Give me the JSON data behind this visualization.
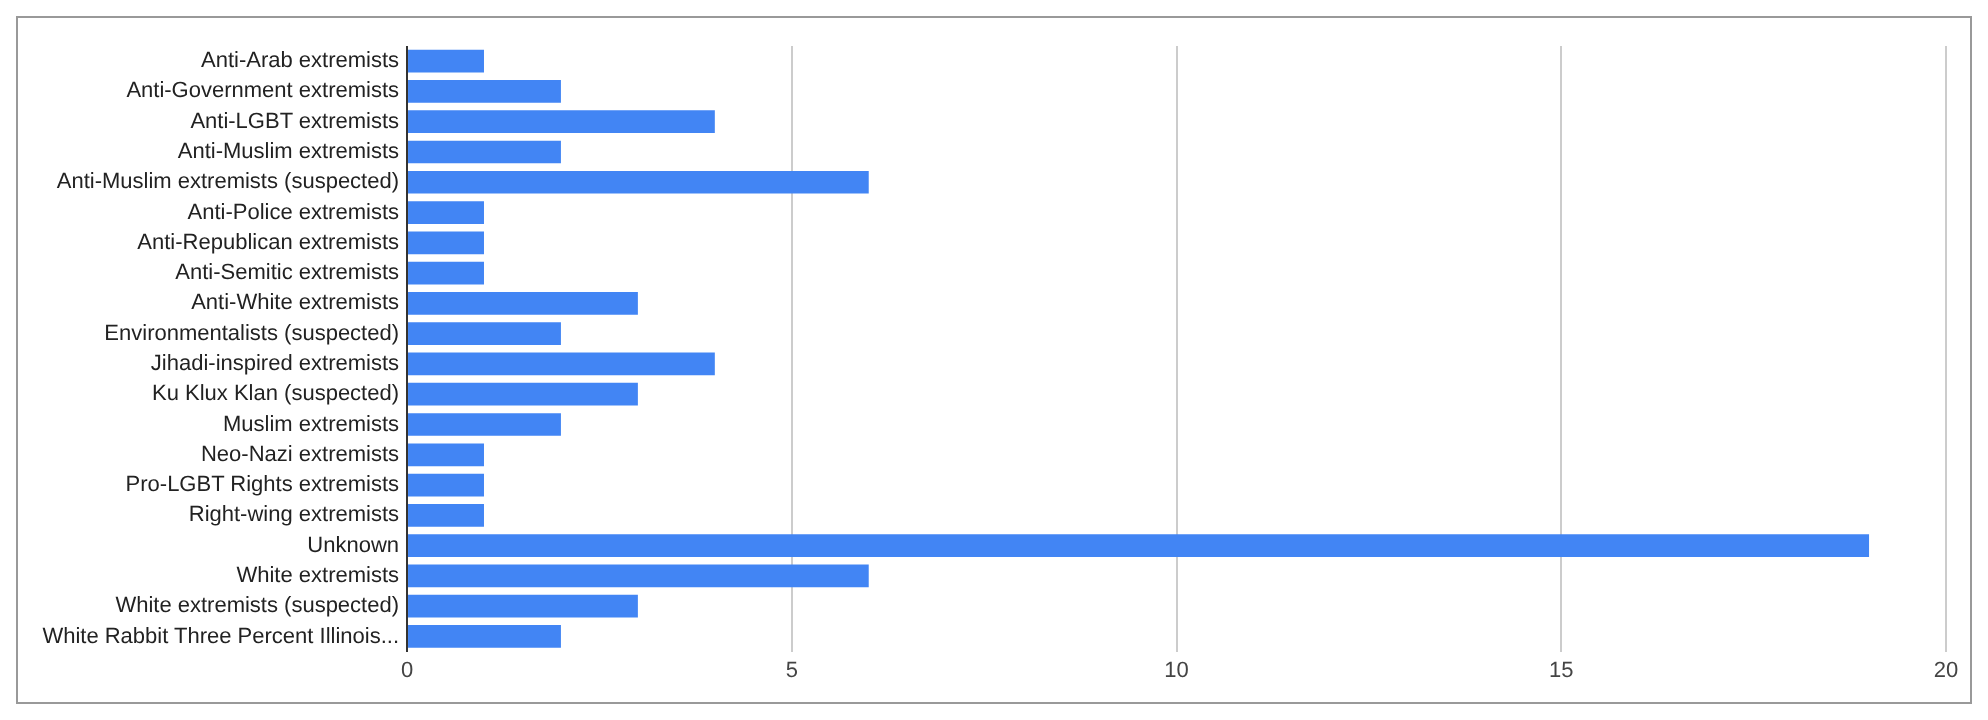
{
  "chart_data": {
    "type": "bar",
    "orientation": "horizontal",
    "categories": [
      "Anti-Arab extremists",
      "Anti-Government extremists",
      "Anti-LGBT extremists",
      "Anti-Muslim extremists",
      "Anti-Muslim extremists (suspected)",
      "Anti-Police extremists",
      "Anti-Republican extremists",
      "Anti-Semitic extremists",
      "Anti-White extremists",
      "Environmentalists (suspected)",
      "Jihadi-inspired extremists",
      "Ku Klux Klan (suspected)",
      "Muslim extremists",
      "Neo-Nazi extremists",
      "Pro-LGBT Rights extremists",
      "Right-wing extremists",
      "Unknown",
      "White extremists",
      "White extremists (suspected)",
      "White Rabbit Three Percent Illinois..."
    ],
    "values": [
      1,
      2,
      4,
      2,
      6,
      1,
      1,
      1,
      3,
      2,
      4,
      3,
      2,
      1,
      1,
      1,
      19,
      6,
      3,
      2
    ],
    "color": "#4285f4",
    "xlim": [
      0,
      20
    ],
    "xticks": [
      0,
      5,
      10,
      15,
      20
    ],
    "grid": "x",
    "legend": false
  }
}
